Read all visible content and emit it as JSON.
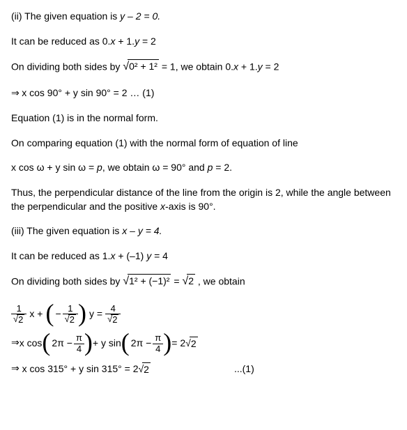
{
  "p1": "(ii) The given equation is ",
  "p1eq": "y – 2 = 0.",
  "p2a": "It can be reduced as 0.",
  "p2b": " + 1.",
  "p2c": " = 2",
  "p3a": "On dividing both sides by ",
  "p3_sqrt": "0² + 1²",
  "p3b": " = 1",
  "p3c": ", we obtain 0.",
  "p3d": " + 1.",
  "p3e": " = 2",
  "p4": "x cos 90° + y sin 90° = 2 … (1)",
  "p5": "Equation (1) is in the normal form.",
  "p6": "On comparing equation (1) with the normal form of equation of line",
  "p7a": "x cos ω + y sin ω = ",
  "p7b": ", we obtain ω = 90° and ",
  "p7c": " = 2.",
  "p8": "Thus, the perpendicular distance of the line from the origin is 2, while the angle between the perpendicular and the positive ",
  "p8b": "-axis is 90°.",
  "p9": "(iii) The given equation is ",
  "p9eq": "x – y = 4.",
  "p10a": "It can be reduced as 1.",
  "p10b": " + (–1) ",
  "p10c": " = 4",
  "p11a": "On dividing both sides by ",
  "p11_sqrt": "1² + (−1)²",
  "p11b": " = ",
  "p11_sqrt2": "2",
  "p11c": " , we obtain",
  "eq1": {
    "num1": "1",
    "den1": "2",
    "x": "x + ",
    "negnum": "1",
    "negden": "2",
    "y": "y = ",
    "rnum": "4",
    "rden": "2"
  },
  "eq2": {
    "pre": "x cos",
    "a1": "2π − ",
    "pnum": "π",
    "pden": "4",
    "mid": " + y sin",
    "eq": " = 2",
    "s2": "2"
  },
  "eq3": {
    "text": "x cos 315° + y sin 315° = 2",
    "s2": "2",
    "label": "...(1)"
  },
  "x": "x",
  "y": "y",
  "p": "p",
  "arrow": "⇒ "
}
